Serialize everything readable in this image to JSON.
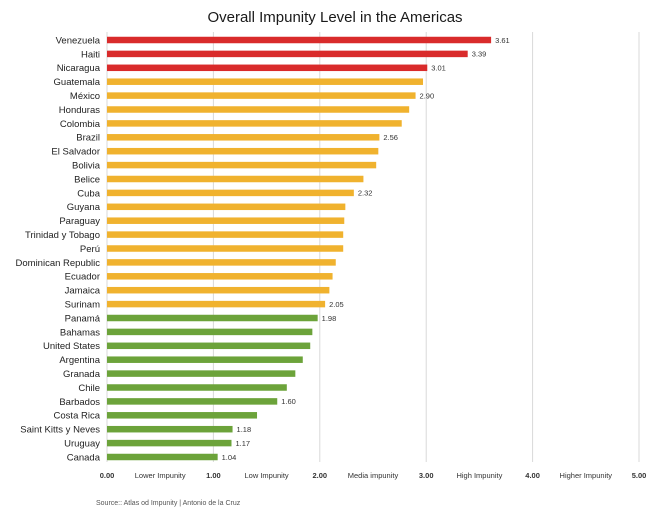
{
  "chart_data": {
    "type": "bar",
    "orientation": "horizontal",
    "title": "Overall Impunity Level in the Americas",
    "source": "Source:: Atlas od Impunity | Antonio de la Cruz",
    "categories": [
      "Venezuela",
      "Haiti",
      "Nicaragua",
      "Guatemala",
      "México",
      "Honduras",
      "Colombia",
      "Brazil",
      "El Salvador",
      "Bolivia",
      "Belice",
      "Cuba",
      "Guyana",
      "Paraguay",
      "Trinidad y Tobago",
      "Perú",
      "Dominican Republic",
      "Ecuador",
      "Jamaica",
      "Surinam",
      "Panamá",
      "Bahamas",
      "United States",
      "Argentina",
      "Granada",
      "Chile",
      "Barbados",
      "Costa Rica",
      "Saint Kitts y Neves",
      "Uruguay",
      "Canada"
    ],
    "values": [
      3.61,
      3.39,
      3.01,
      2.97,
      2.9,
      2.84,
      2.77,
      2.56,
      2.55,
      2.53,
      2.41,
      2.32,
      2.24,
      2.23,
      2.22,
      2.22,
      2.15,
      2.12,
      2.09,
      2.05,
      1.98,
      1.93,
      1.91,
      1.84,
      1.77,
      1.69,
      1.6,
      1.41,
      1.18,
      1.17,
      1.04
    ],
    "value_labels": [
      "3.61",
      "3.39",
      "3.01",
      "",
      "2.90",
      "",
      "",
      "2.56",
      "",
      "",
      "",
      "2.32",
      "",
      "",
      "",
      "",
      "",
      "",
      "",
      "2.05",
      "1.98",
      "",
      "",
      "",
      "",
      "",
      "1.60",
      "",
      "1.18",
      "1.17",
      "1.04"
    ],
    "bar_colors": [
      "#d92b2b",
      "#d92b2b",
      "#d92b2b",
      "#f0b22e",
      "#f0b22e",
      "#f0b22e",
      "#f0b22e",
      "#f0b22e",
      "#f0b22e",
      "#f0b22e",
      "#f0b22e",
      "#f0b22e",
      "#f0b22e",
      "#f0b22e",
      "#f0b22e",
      "#f0b22e",
      "#f0b22e",
      "#f0b22e",
      "#f0b22e",
      "#f0b22e",
      "#6ca33a",
      "#6ca33a",
      "#6ca33a",
      "#6ca33a",
      "#6ca33a",
      "#6ca33a",
      "#6ca33a",
      "#6ca33a",
      "#6ca33a",
      "#6ca33a",
      "#6ca33a"
    ],
    "xlim": [
      0,
      5
    ],
    "x_ticks": [
      "0.00",
      "1.00",
      "2.00",
      "3.00",
      "4.00",
      "5.00"
    ],
    "zone_labels": [
      "Lower Impunity",
      "Low Impunity",
      "Media impunity",
      "High Impunity",
      "Higher Impunity"
    ],
    "grid": true
  }
}
